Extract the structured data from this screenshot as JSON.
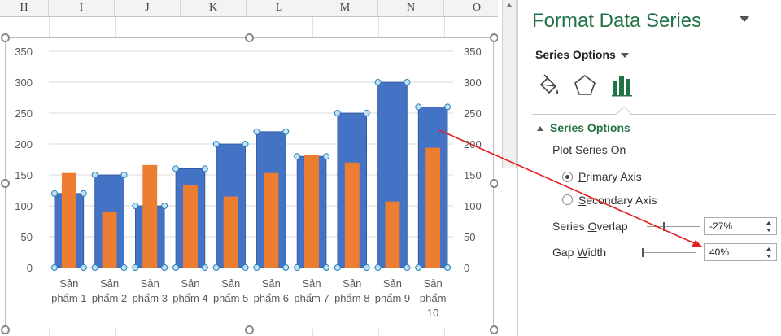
{
  "spreadsheet": {
    "columns": [
      "H",
      "I",
      "J",
      "K",
      "L",
      "M",
      "N",
      "O"
    ]
  },
  "chart_data": {
    "type": "bar",
    "categories": [
      "Sản phẩm 1",
      "Sản phẩm 2",
      "Sản phẩm 3",
      "Sản phẩm 4",
      "Sản phẩm 5",
      "Sản phẩm 6",
      "Sản phẩm 7",
      "Sản phẩm 8",
      "Sản phẩm 9",
      "Sản phẩm 10"
    ],
    "category_lines": [
      [
        "Sản",
        "phẩm 1"
      ],
      [
        "Sản",
        "phẩm 2"
      ],
      [
        "Sản",
        "phẩm 3"
      ],
      [
        "Sản",
        "phẩm 4"
      ],
      [
        "Sản",
        "phẩm 5"
      ],
      [
        "Sản",
        "phẩm 6"
      ],
      [
        "Sản",
        "phẩm 7"
      ],
      [
        "Sản",
        "phẩm 8"
      ],
      [
        "Sản",
        "phẩm 9"
      ],
      [
        "Sản",
        "phẩm",
        "10"
      ]
    ],
    "series": [
      {
        "values": [
          120,
          150,
          100,
          160,
          200,
          220,
          180,
          250,
          300,
          260
        ],
        "color": "#4472c4",
        "selected": true
      },
      {
        "values": [
          153,
          91,
          166,
          134,
          115,
          153,
          182,
          170,
          107,
          194
        ],
        "color": "#ed7d31"
      }
    ],
    "ylim": [
      0,
      350
    ],
    "yticks": [
      0,
      50,
      100,
      150,
      200,
      250,
      300,
      350
    ],
    "secondary_yticks": [
      0,
      50,
      100,
      150,
      200,
      250,
      300,
      350
    ],
    "grid": true,
    "legend": "none"
  },
  "panel": {
    "title": "Format Data Series",
    "options_dropdown": "Series Options",
    "tabs": [
      {
        "icon": "paint-bucket-icon"
      },
      {
        "icon": "pentagon-icon"
      },
      {
        "icon": "bar-chart-icon",
        "active": true
      }
    ],
    "section_title": "Series Options",
    "plot_series_on": "Plot Series On",
    "primary_axis_pre": "P",
    "primary_axis_rest": "rimary Axis",
    "secondary_axis_pre": "S",
    "secondary_axis_rest": "econdary Axis",
    "primary_selected": true,
    "series_overlap_pre": "Series ",
    "series_overlap_u": "O",
    "series_overlap_rest": "verlap",
    "series_overlap_value": "-27%",
    "gap_width_pre": "Gap ",
    "gap_width_u": "W",
    "gap_width_rest": "idth",
    "gap_width_value": "40%",
    "accent": "#217346",
    "annotation_arrow_color": "#e01f1f"
  }
}
